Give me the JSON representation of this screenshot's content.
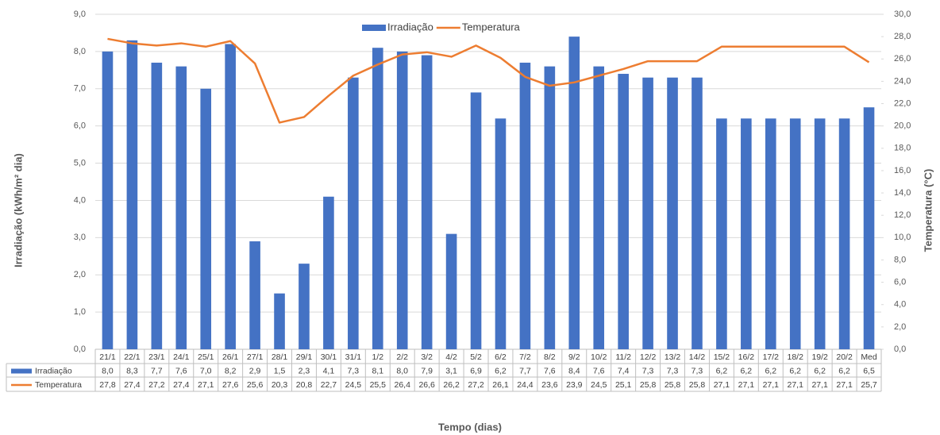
{
  "chart_data": {
    "type": "bar_line",
    "x_label": "Tempo (dias)",
    "y_label": "Irradiação (kWh/m² dia)",
    "y2_label": "Temperatura (°C)",
    "categories": [
      "21/1",
      "22/1",
      "23/1",
      "24/1",
      "25/1",
      "26/1",
      "27/1",
      "28/1",
      "29/1",
      "30/1",
      "31/1",
      "1/2",
      "2/2",
      "3/2",
      "4/2",
      "5/2",
      "6/2",
      "7/2",
      "8/2",
      "9/2",
      "10/2",
      "11/2",
      "12/2",
      "13/2",
      "14/2",
      "15/2",
      "16/2",
      "17/2",
      "18/2",
      "19/2",
      "20/2",
      "Med"
    ],
    "series": [
      {
        "name": "Irradiação",
        "type": "bar",
        "color": "#4472c4",
        "values": [
          8.0,
          8.3,
          7.7,
          7.6,
          7.0,
          8.2,
          2.9,
          1.5,
          2.3,
          4.1,
          7.3,
          8.1,
          8.0,
          7.9,
          3.1,
          6.9,
          6.2,
          7.7,
          7.6,
          8.4,
          7.6,
          7.4,
          7.3,
          7.3,
          7.3,
          6.2,
          6.2,
          6.2,
          6.2,
          6.2,
          6.2,
          6.5
        ],
        "value_labels": [
          "8,0",
          "8,3",
          "7,7",
          "7,6",
          "7,0",
          "8,2",
          "2,9",
          "1,5",
          "2,3",
          "4,1",
          "7,3",
          "8,1",
          "8,0",
          "7,9",
          "3,1",
          "6,9",
          "6,2",
          "7,7",
          "7,6",
          "8,4",
          "7,6",
          "7,4",
          "7,3",
          "7,3",
          "7,3",
          "6,2",
          "6,2",
          "6,2",
          "6,2",
          "6,2",
          "6,2",
          "6,5"
        ]
      },
      {
        "name": "Temperatura",
        "type": "line",
        "color": "#ed7d31",
        "axis": "y2",
        "values": [
          27.8,
          27.4,
          27.2,
          27.4,
          27.1,
          27.6,
          25.6,
          20.3,
          20.8,
          22.7,
          24.5,
          25.5,
          26.4,
          26.6,
          26.2,
          27.2,
          26.1,
          24.4,
          23.6,
          23.9,
          24.5,
          25.1,
          25.8,
          25.8,
          25.8,
          27.1,
          27.1,
          27.1,
          27.1,
          27.1,
          27.1,
          25.7
        ],
        "value_labels": [
          "27,8",
          "27,4",
          "27,2",
          "27,4",
          "27,1",
          "27,6",
          "25,6",
          "20,3",
          "20,8",
          "22,7",
          "24,5",
          "25,5",
          "26,4",
          "26,6",
          "26,2",
          "27,2",
          "26,1",
          "24,4",
          "23,6",
          "23,9",
          "24,5",
          "25,1",
          "25,8",
          "25,8",
          "25,8",
          "27,1",
          "27,1",
          "27,1",
          "27,1",
          "27,1",
          "27,1",
          "25,7"
        ]
      }
    ],
    "ylim": [
      0,
      9
    ],
    "yticks": [
      {
        "value": 0,
        "label": "0,0"
      },
      {
        "value": 1,
        "label": "1,0"
      },
      {
        "value": 2,
        "label": "2,0"
      },
      {
        "value": 3,
        "label": "3,0"
      },
      {
        "value": 4,
        "label": "4,0"
      },
      {
        "value": 5,
        "label": "5,0"
      },
      {
        "value": 6,
        "label": "6,0"
      },
      {
        "value": 7,
        "label": "7,0"
      },
      {
        "value": 8,
        "label": "8,0"
      },
      {
        "value": 9,
        "label": "9,0"
      }
    ],
    "y2lim": [
      0,
      30
    ],
    "y2ticks": [
      {
        "value": 0,
        "label": "0,0"
      },
      {
        "value": 2,
        "label": "2,0"
      },
      {
        "value": 4,
        "label": "4,0"
      },
      {
        "value": 6,
        "label": "6,0"
      },
      {
        "value": 8,
        "label": "8,0"
      },
      {
        "value": 10,
        "label": "10,0"
      },
      {
        "value": 12,
        "label": "12,0"
      },
      {
        "value": 14,
        "label": "14,0"
      },
      {
        "value": 16,
        "label": "16,0"
      },
      {
        "value": 18,
        "label": "18,0"
      },
      {
        "value": 20,
        "label": "20,0"
      },
      {
        "value": 22,
        "label": "22,0"
      },
      {
        "value": 24,
        "label": "24,0"
      },
      {
        "value": 26,
        "label": "26,0"
      },
      {
        "value": 28,
        "label": "28,0"
      },
      {
        "value": 30,
        "label": "30,0"
      }
    ],
    "grid": true,
    "legend": "top"
  }
}
